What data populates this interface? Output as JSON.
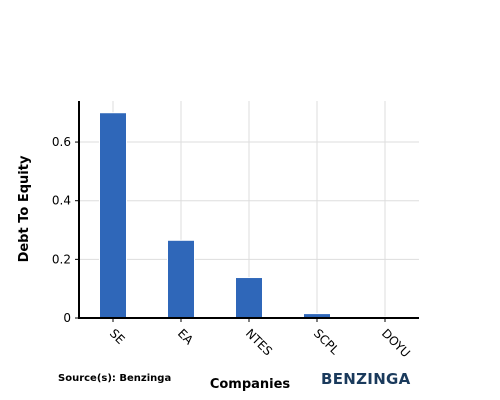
{
  "chart_data": {
    "type": "bar",
    "title": "",
    "xlabel": "Companies",
    "ylabel": "Debt To Equity",
    "categories": [
      "SE",
      "EA",
      "NTES",
      "SCPL",
      "DOYU"
    ],
    "values": [
      0.7,
      0.265,
      0.138,
      0.015,
      0.004
    ],
    "ylim": [
      0,
      0.74
    ],
    "yticks": [
      0,
      0.2,
      0.4,
      0.6
    ],
    "ytick_labels": [
      "0",
      "0.2",
      "0.4",
      "0.6"
    ],
    "grid": true,
    "bar_color": "#2f67b9"
  },
  "footer": {
    "source": "Source(s): Benzinga",
    "logo": "BENZINGA",
    "logo_color": "#1a3a5c"
  }
}
